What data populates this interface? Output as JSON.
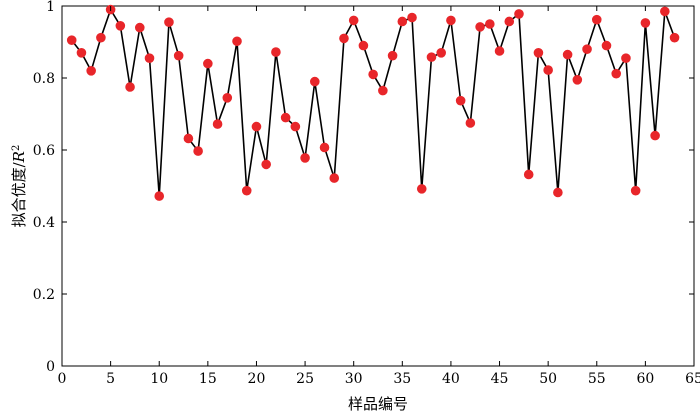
{
  "chart_data": {
    "type": "line",
    "xlabel": "样品编号",
    "ylabel_text": "拟合优度/",
    "ylabel_var": "R",
    "ylabel_sup": "2",
    "xlim": [
      0,
      65
    ],
    "ylim": [
      0,
      1
    ],
    "x_ticks": [
      0,
      5,
      10,
      15,
      20,
      25,
      30,
      35,
      40,
      45,
      50,
      55,
      60,
      65
    ],
    "y_ticks": [
      0,
      0.2,
      0.4,
      0.6,
      0.8,
      1
    ],
    "y_tick_labels": [
      "0",
      "0.2",
      "0.4",
      "0.6",
      "0.8",
      "1"
    ],
    "grid": false,
    "marker_color": "#e8262a",
    "line_color": "#000000",
    "series": [
      {
        "x": [
          1,
          2,
          3,
          4,
          5,
          6,
          7,
          8,
          9,
          10,
          11,
          12,
          13,
          14,
          15,
          16,
          17,
          18,
          19,
          20,
          21,
          22,
          23,
          24,
          25,
          26,
          27,
          28,
          29,
          30,
          31,
          32,
          33,
          34,
          35,
          36,
          37,
          38,
          39,
          40,
          41,
          42,
          43,
          44,
          45,
          46,
          47,
          48,
          49,
          50,
          51,
          52,
          53,
          54,
          55,
          56,
          57,
          58,
          59,
          60,
          61,
          62,
          63
        ],
        "values": [
          0.905,
          0.87,
          0.82,
          0.912,
          0.99,
          0.945,
          0.775,
          0.94,
          0.855,
          0.472,
          0.955,
          0.862,
          0.632,
          0.597,
          0.84,
          0.672,
          0.745,
          0.902,
          0.487,
          0.665,
          0.56,
          0.872,
          0.69,
          0.665,
          0.578,
          0.79,
          0.607,
          0.522,
          0.91,
          0.96,
          0.89,
          0.81,
          0.765,
          0.862,
          0.957,
          0.968,
          0.492,
          0.858,
          0.87,
          0.96,
          0.737,
          0.675,
          0.942,
          0.95,
          0.875,
          0.957,
          0.978,
          0.532,
          0.87,
          0.822,
          0.482,
          0.865,
          0.795,
          0.88,
          0.962,
          0.89,
          0.812,
          0.855,
          0.487,
          0.953,
          0.64,
          0.985,
          0.912
        ]
      }
    ]
  }
}
